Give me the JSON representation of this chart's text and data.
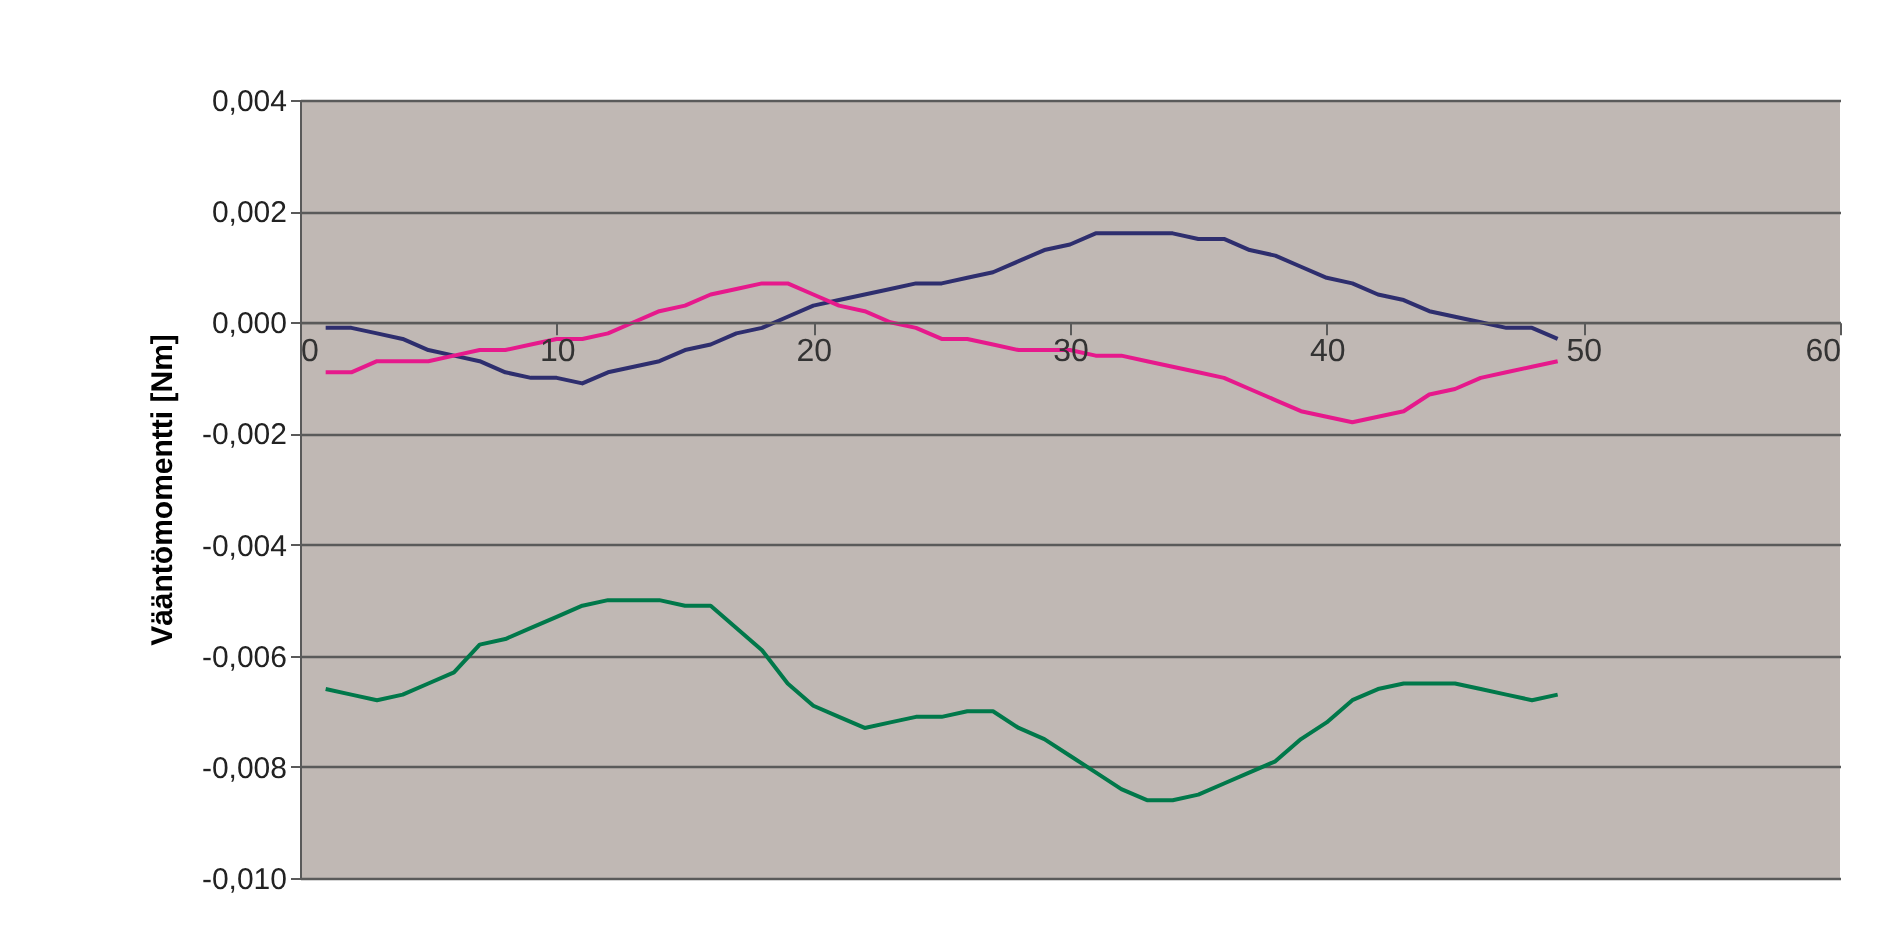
{
  "chart_data": {
    "type": "line",
    "ylabel": "Vääntömomentti [Nm]",
    "x": [
      1,
      2,
      3,
      4,
      5,
      6,
      7,
      8,
      9,
      10,
      11,
      12,
      13,
      14,
      15,
      16,
      17,
      18,
      19,
      20,
      21,
      22,
      23,
      24,
      25,
      26,
      27,
      28,
      29,
      30,
      31,
      32,
      33,
      34,
      35,
      36,
      37,
      38,
      39,
      40,
      41,
      42,
      43,
      44,
      45,
      46,
      47,
      48,
      49
    ],
    "series": [
      {
        "color": "#2e2e6e",
        "values": [
          -0.0001,
          -0.0001,
          -0.0002,
          -0.0003,
          -0.0005,
          -0.0006,
          -0.0007,
          -0.0009,
          -0.001,
          -0.001,
          -0.0011,
          -0.0009,
          -0.0008,
          -0.0007,
          -0.0005,
          -0.0004,
          -0.0002,
          -0.0001,
          0.0001,
          0.0003,
          0.0004,
          0.0005,
          0.0006,
          0.0007,
          0.0007,
          0.0008,
          0.0009,
          0.0011,
          0.0013,
          0.0014,
          0.0016,
          0.0016,
          0.0016,
          0.0016,
          0.0015,
          0.0015,
          0.0013,
          0.0012,
          0.001,
          0.0008,
          0.0007,
          0.0005,
          0.0004,
          0.0002,
          0.0001,
          0.0,
          -0.0001,
          -0.0001,
          -0.0003
        ]
      },
      {
        "color": "#e6198c",
        "values": [
          -0.0009,
          -0.0009,
          -0.0007,
          -0.0007,
          -0.0007,
          -0.0006,
          -0.0005,
          -0.0005,
          -0.0004,
          -0.0003,
          -0.0003,
          -0.0002,
          0.0,
          0.0002,
          0.0003,
          0.0005,
          0.0006,
          0.0007,
          0.0007,
          0.0005,
          0.0003,
          0.0002,
          0.0,
          -0.0001,
          -0.0003,
          -0.0003,
          -0.0004,
          -0.0005,
          -0.0005,
          -0.0005,
          -0.0006,
          -0.0006,
          -0.0007,
          -0.0008,
          -0.0009,
          -0.001,
          -0.0012,
          -0.0014,
          -0.0016,
          -0.0017,
          -0.0018,
          -0.0017,
          -0.0016,
          -0.0013,
          -0.0012,
          -0.001,
          -0.0009,
          -0.0008,
          -0.0007
        ]
      },
      {
        "color": "#00784a",
        "values": [
          -0.0066,
          -0.0067,
          -0.0068,
          -0.0067,
          -0.0065,
          -0.0063,
          -0.0058,
          -0.0057,
          -0.0055,
          -0.0053,
          -0.0051,
          -0.005,
          -0.005,
          -0.005,
          -0.0051,
          -0.0051,
          -0.0055,
          -0.0059,
          -0.0065,
          -0.0069,
          -0.0071,
          -0.0073,
          -0.0072,
          -0.0071,
          -0.0071,
          -0.007,
          -0.007,
          -0.0073,
          -0.0075,
          -0.0078,
          -0.0081,
          -0.0084,
          -0.0086,
          -0.0086,
          -0.0085,
          -0.0083,
          -0.0081,
          -0.0079,
          -0.0075,
          -0.0072,
          -0.0068,
          -0.0066,
          -0.0065,
          -0.0065,
          -0.0065,
          -0.0066,
          -0.0067,
          -0.0068,
          -0.0067
        ]
      }
    ],
    "xlim": [
      0,
      60
    ],
    "xticks": [
      0,
      10,
      20,
      30,
      40,
      50,
      60
    ],
    "ylim": [
      -0.01,
      0.004
    ],
    "yticks": [
      {
        "value": -0.01,
        "label": "-0,010"
      },
      {
        "value": -0.008,
        "label": "-0,008"
      },
      {
        "value": -0.006,
        "label": "-0,006"
      },
      {
        "value": -0.004,
        "label": "-0,004"
      },
      {
        "value": -0.002,
        "label": "-0,002"
      },
      {
        "value": 0,
        "label": "0,000"
      },
      {
        "value": 0.002,
        "label": "0,002"
      },
      {
        "value": 0.004,
        "label": "0,004"
      }
    ],
    "grid": "y",
    "legend": false,
    "marker": "none",
    "line_style": "solid"
  }
}
